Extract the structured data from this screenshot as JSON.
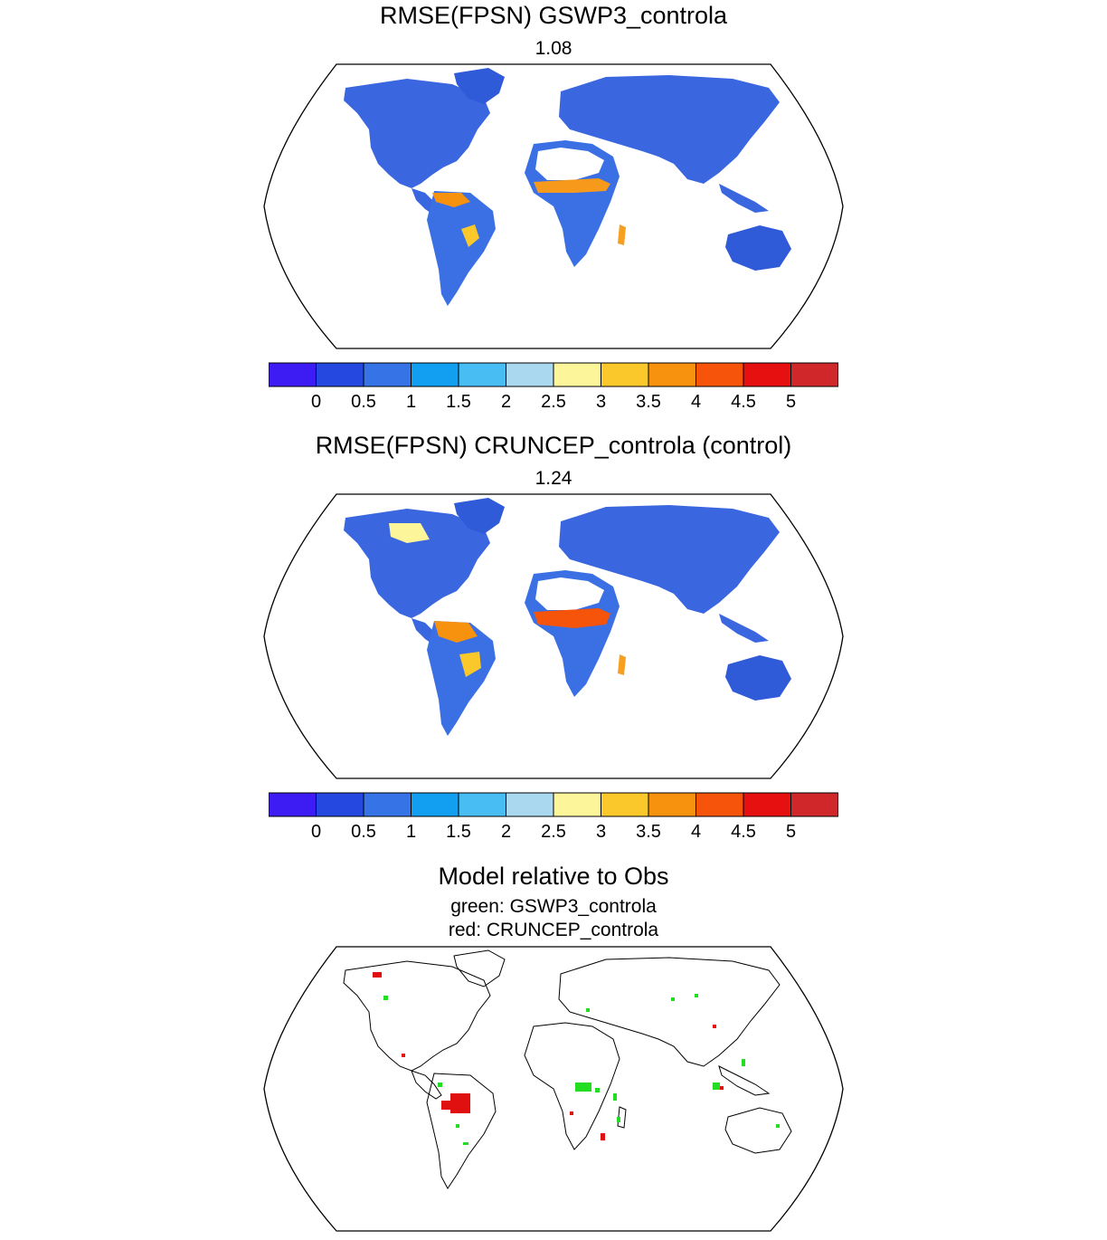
{
  "panels": [
    {
      "title": "RMSE(FPSN) GSWP3_controla",
      "subtitle": "1.08"
    },
    {
      "title": "RMSE(FPSN) CRUNCEP_controla (control)",
      "subtitle": "1.24"
    }
  ],
  "colorbar": {
    "colors": [
      "#3c1cf2",
      "#2448e0",
      "#3573e6",
      "#129ff2",
      "#48bdf4",
      "#a9d8ef",
      "#fdf59a",
      "#fac82a",
      "#f7920f",
      "#f5540a",
      "#e71010",
      "#d0282a"
    ],
    "tick_labels": [
      "0",
      "0.5",
      "1",
      "1.5",
      "2",
      "2.5",
      "3",
      "3.5",
      "4",
      "4.5",
      "5"
    ]
  },
  "comparison": {
    "title": "Model relative to Obs",
    "legend_green": "green: GSWP3_controla",
    "legend_red": "red: CRUNCEP_controla",
    "green_color": "#22dd22",
    "red_color": "#e01010"
  }
}
